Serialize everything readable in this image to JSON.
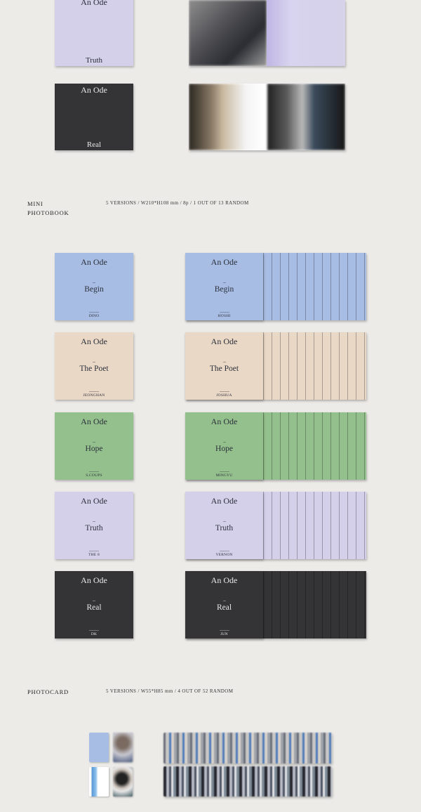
{
  "colors": {
    "background": "#ecebe8",
    "begin": "#a8bde4",
    "the_poet": "#ead8c7",
    "hope": "#94c08d",
    "truth": "#d4d0ea",
    "real": "#343436"
  },
  "top_section": {
    "cards": [
      {
        "title": "An Ode",
        "version": "Truth"
      },
      {
        "title": "An Ode",
        "version": "Real"
      }
    ]
  },
  "mini_photobook": {
    "label_line1": "MINI",
    "label_line2": "PHOTOBOOK",
    "spec": "5 VERSIONS / W210*H108 mm / 8p / 1 OUT OF 13 RANDOM",
    "rows": [
      {
        "title": "An Ode",
        "version": "Begin",
        "left_member": "DINO",
        "right_member": "HOSHI",
        "color": "#a8bde4"
      },
      {
        "title": "An Ode",
        "version": "The Poet",
        "left_member": "JEONGHAN",
        "right_member": "JOSHUA",
        "color": "#ead8c7"
      },
      {
        "title": "An Ode",
        "version": "Hope",
        "left_member": "S.COUPS",
        "right_member": "MINGYU",
        "color": "#94c08d"
      },
      {
        "title": "An Ode",
        "version": "Truth",
        "left_member": "THE 8",
        "right_member": "VERNON",
        "color": "#d4d0ea"
      },
      {
        "title": "An Ode",
        "version": "Real",
        "left_member": "DK",
        "right_member": "JUN",
        "color": "#343436"
      }
    ]
  },
  "photocard": {
    "label": "PHOTOCARD",
    "spec": "5 VERSIONS / W55*H85 mm / 4 OUT OF 52 RANDOM"
  }
}
